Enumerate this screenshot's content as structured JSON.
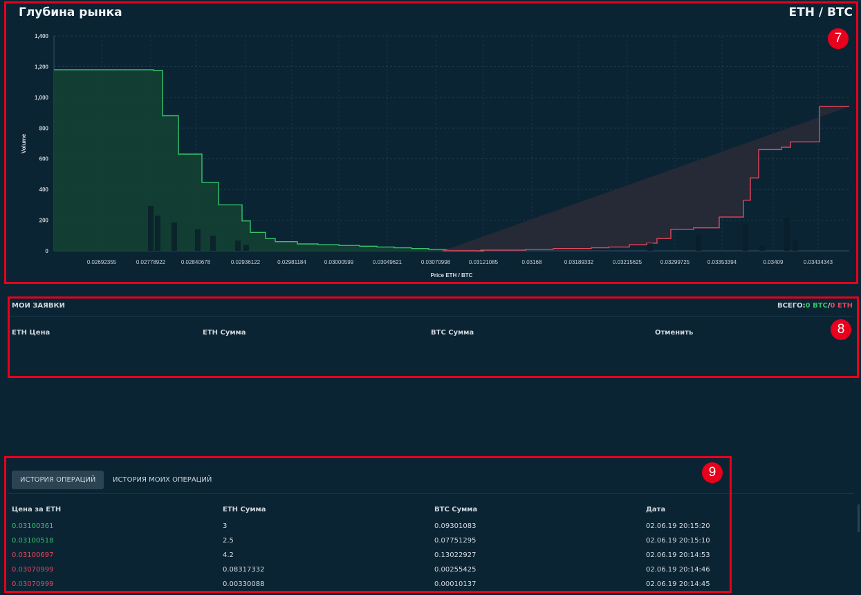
{
  "depth": {
    "title": "Глубина рынка",
    "pair": "ETH / BTC"
  },
  "chart_data": {
    "type": "area",
    "title": "Глубина рынка",
    "xlabel": "Price ETH / BTC",
    "ylabel": "Volume",
    "ylim": [
      0,
      1400
    ],
    "yticks": [
      "0",
      "200",
      "400",
      "600",
      "800",
      "1,000",
      "1,200",
      "1,400"
    ],
    "xtick_labels": [
      "0.02692355",
      "0.02778922",
      "0.02840678",
      "0.02936122",
      "0.02981184",
      "0.03000599",
      "0.03049621",
      "0.03070998",
      "0.03121085",
      "0.03168",
      "0.03189332",
      "0.03215625",
      "0.03299725",
      "0.03353394",
      "0.03409",
      "0.03434343"
    ],
    "grid": true,
    "bids_color": "#35c46a",
    "asks_color": "#e8465b",
    "bids_steps": [
      1180,
      1175,
      880,
      630,
      445,
      300,
      195,
      120,
      80,
      60,
      45,
      40,
      35,
      30,
      25,
      20,
      15,
      10,
      5,
      0
    ],
    "asks_steps": [
      0,
      5,
      10,
      15,
      20,
      25,
      40,
      50,
      80,
      140,
      150,
      220,
      330,
      475,
      660,
      675,
      710,
      940,
      1005,
      1010
    ]
  },
  "orders": {
    "title": "МОИ ЗАЯВКИ",
    "total_label": "ВСЕГО:",
    "total_btc": "0 BTC",
    "separator": "/",
    "total_eth": "0 ETH",
    "columns": [
      "ETH Цена",
      "ETH Сумма",
      "BTC Сумма",
      "Отменить"
    ]
  },
  "history": {
    "tabs": [
      "ИСТОРИЯ ОПЕРАЦИЙ",
      "ИСТОРИЯ МОИХ ОПЕРАЦИЙ"
    ],
    "columns": [
      "Цена за ETH",
      "ETH Сумма",
      "BTC Сумма",
      "Дата"
    ],
    "rows": [
      {
        "price": "0.03100361",
        "eth": "3",
        "btc": "0.09301083",
        "date": "02.06.19 20:15:20",
        "side": "buy"
      },
      {
        "price": "0.03100518",
        "eth": "2.5",
        "btc": "0.07751295",
        "date": "02.06.19 20:15:10",
        "side": "buy"
      },
      {
        "price": "0.03100697",
        "eth": "4.2",
        "btc": "0.13022927",
        "date": "02.06.19 20:14:53",
        "side": "sell"
      },
      {
        "price": "0.03070999",
        "eth": "0.08317332",
        "btc": "0.00255425",
        "date": "02.06.19 20:14:46",
        "side": "sell"
      },
      {
        "price": "0.03070999",
        "eth": "0.00330088",
        "btc": "0.00010137",
        "date": "02.06.19 20:14:45",
        "side": "sell"
      }
    ]
  },
  "annotations": [
    "7",
    "8",
    "9"
  ]
}
